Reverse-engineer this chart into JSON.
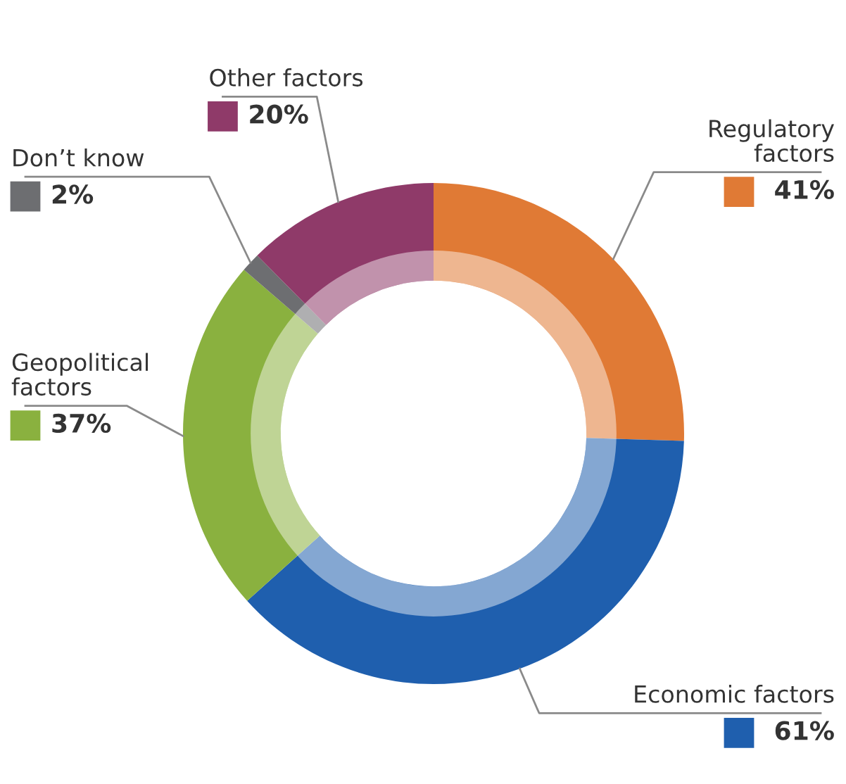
{
  "chart_data": {
    "type": "donut",
    "categories": [
      "Regulatory\nfactors",
      "Economic factors",
      "Geopolitical\nfactors",
      "Don’t know",
      "Other factors"
    ],
    "values": [
      41,
      61,
      37,
      2,
      20
    ],
    "value_labels": [
      "41%",
      "61%",
      "37%",
      "2%",
      "20%"
    ],
    "colors": [
      "#e07a35",
      "#1f5fae",
      "#8ab13f",
      "#6d6e71",
      "#8f3a69"
    ],
    "legend": false
  }
}
